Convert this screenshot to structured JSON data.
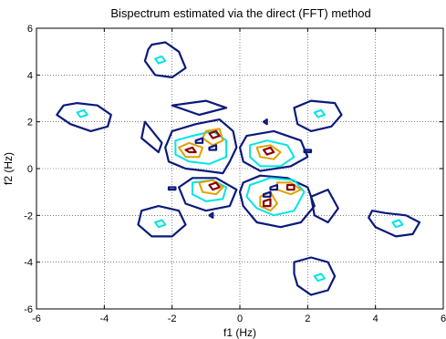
{
  "chart_data": {
    "type": "contour",
    "title": "Bispectrum estimated via the direct (FFT) method",
    "xlabel": "f1 (Hz)",
    "ylabel": "f2 (Hz)",
    "xlim": [
      -6,
      6
    ],
    "ylim": [
      -6,
      6
    ],
    "xticks": [
      -6,
      -4,
      -2,
      0,
      2,
      4,
      6
    ],
    "yticks": [
      -6,
      -4,
      -2,
      0,
      2,
      4,
      6
    ],
    "xtick_labels": [
      "-6",
      "-4",
      "-2",
      "0",
      "2",
      "4",
      "6"
    ],
    "ytick_labels": [
      "-6",
      "-4",
      "-2",
      "0",
      "2",
      "4",
      "6"
    ],
    "grid": true,
    "level_colors": [
      "#0a1a7a",
      "#00e5e5",
      "#e0a000",
      "#8b0000"
    ],
    "contours": [
      {
        "level": 1,
        "color": "#0a1a7a",
        "points": [
          [
            -2.6,
            5.3
          ],
          [
            -2.2,
            5.4
          ],
          [
            -1.8,
            5.0
          ],
          [
            -1.6,
            4.3
          ],
          [
            -2.0,
            3.9
          ],
          [
            -2.5,
            4.0
          ],
          [
            -2.8,
            4.6
          ],
          [
            -2.7,
            5.1
          ]
        ]
      },
      {
        "level": 1,
        "color": "#0a1a7a",
        "points": [
          [
            -5.2,
            2.7
          ],
          [
            -4.8,
            2.8
          ],
          [
            -4.2,
            2.7
          ],
          [
            -3.8,
            2.3
          ],
          [
            -3.9,
            1.8
          ],
          [
            -4.4,
            1.6
          ],
          [
            -5.0,
            1.9
          ],
          [
            -5.4,
            2.3
          ]
        ]
      },
      {
        "level": 1,
        "color": "#0a1a7a",
        "points": [
          [
            1.6,
            2.6
          ],
          [
            2.1,
            2.9
          ],
          [
            2.8,
            2.8
          ],
          [
            3.0,
            2.3
          ],
          [
            2.7,
            1.8
          ],
          [
            2.1,
            1.6
          ],
          [
            1.7,
            1.9
          ]
        ]
      },
      {
        "level": 1,
        "color": "#0a1a7a",
        "points": [
          [
            -2.9,
            -1.8
          ],
          [
            -2.4,
            -1.6
          ],
          [
            -1.8,
            -1.8
          ],
          [
            -1.6,
            -2.4
          ],
          [
            -2.0,
            -2.9
          ],
          [
            -2.6,
            -2.9
          ],
          [
            -3.0,
            -2.4
          ]
        ]
      },
      {
        "level": 1,
        "color": "#0a1a7a",
        "points": [
          [
            3.9,
            -1.8
          ],
          [
            4.3,
            -1.9
          ],
          [
            4.9,
            -2.0
          ],
          [
            5.3,
            -2.3
          ],
          [
            5.1,
            -2.8
          ],
          [
            4.6,
            -2.9
          ],
          [
            4.0,
            -2.5
          ],
          [
            3.8,
            -2.1
          ]
        ]
      },
      {
        "level": 1,
        "color": "#0a1a7a",
        "points": [
          [
            1.6,
            -4.0
          ],
          [
            2.1,
            -3.8
          ],
          [
            2.6,
            -4.0
          ],
          [
            2.8,
            -4.6
          ],
          [
            2.6,
            -5.2
          ],
          [
            2.1,
            -5.4
          ],
          [
            1.7,
            -5.0
          ],
          [
            1.6,
            -4.5
          ]
        ]
      },
      {
        "level": 1,
        "color": "#0a1a7a",
        "points": [
          [
            -2.0,
            1.6
          ],
          [
            -1.3,
            1.9
          ],
          [
            -0.6,
            2.1
          ],
          [
            -0.2,
            1.6
          ],
          [
            -0.1,
            0.9
          ],
          [
            -0.3,
            0.3
          ],
          [
            -0.5,
            -0.2
          ],
          [
            -1.0,
            -0.1
          ],
          [
            -1.6,
            0.0
          ],
          [
            -2.1,
            0.3
          ],
          [
            -2.2,
            0.9
          ]
        ]
      },
      {
        "level": 1,
        "color": "#0a1a7a",
        "points": [
          [
            -2.8,
            2.0
          ],
          [
            -2.3,
            1.1
          ],
          [
            -2.4,
            0.7
          ],
          [
            -2.9,
            1.3
          ],
          [
            -2.8,
            2.0
          ]
        ]
      },
      {
        "level": 1,
        "color": "#0a1a7a",
        "points": [
          [
            -2.0,
            2.7
          ],
          [
            -1.0,
            2.9
          ],
          [
            -0.4,
            2.6
          ],
          [
            -1.2,
            2.3
          ],
          [
            -2.0,
            2.7
          ]
        ]
      },
      {
        "level": 1,
        "color": "#0a1a7a",
        "points": [
          [
            0.2,
            1.4
          ],
          [
            1.0,
            1.6
          ],
          [
            1.8,
            1.2
          ],
          [
            2.0,
            0.5
          ],
          [
            1.5,
            0.1
          ],
          [
            0.6,
            -0.1
          ],
          [
            0.1,
            0.3
          ],
          [
            0.0,
            0.9
          ]
        ]
      },
      {
        "level": 1,
        "color": "#0a1a7a",
        "points": [
          [
            0.1,
            -0.6
          ],
          [
            0.6,
            -0.3
          ],
          [
            1.4,
            -0.4
          ],
          [
            2.0,
            -0.8
          ],
          [
            2.2,
            -1.6
          ],
          [
            1.8,
            -2.3
          ],
          [
            1.2,
            -2.5
          ],
          [
            0.5,
            -2.3
          ],
          [
            0.1,
            -1.6
          ],
          [
            0.0,
            -1.0
          ]
        ]
      },
      {
        "level": 1,
        "color": "#0a1a7a",
        "points": [
          [
            -1.8,
            -0.8
          ],
          [
            -1.4,
            -0.4
          ],
          [
            -0.7,
            -0.4
          ],
          [
            -0.1,
            -0.9
          ],
          [
            -0.3,
            -1.6
          ],
          [
            -1.0,
            -1.8
          ],
          [
            -1.6,
            -1.5
          ]
        ]
      },
      {
        "level": 1,
        "color": "#0a1a7a",
        "points": [
          [
            2.1,
            -1.2
          ],
          [
            2.6,
            -0.9
          ],
          [
            2.9,
            -1.7
          ],
          [
            2.6,
            -2.3
          ],
          [
            2.2,
            -2.0
          ]
        ]
      },
      {
        "level": 2,
        "color": "#00e5e5",
        "points": [
          [
            -1.9,
            1.2
          ],
          [
            -1.4,
            1.4
          ],
          [
            -0.8,
            1.6
          ],
          [
            -0.4,
            1.2
          ],
          [
            -0.4,
            0.5
          ],
          [
            -0.9,
            0.2
          ],
          [
            -1.5,
            0.3
          ],
          [
            -1.9,
            0.6
          ]
        ]
      },
      {
        "level": 2,
        "color": "#00e5e5",
        "points": [
          [
            0.3,
            1.0
          ],
          [
            0.8,
            1.2
          ],
          [
            1.4,
            1.0
          ],
          [
            1.6,
            0.5
          ],
          [
            1.2,
            0.1
          ],
          [
            0.6,
            0.1
          ],
          [
            0.3,
            0.5
          ]
        ]
      },
      {
        "level": 2,
        "color": "#00e5e5",
        "points": [
          [
            0.3,
            -0.7
          ],
          [
            0.9,
            -0.4
          ],
          [
            1.6,
            -0.5
          ],
          [
            1.9,
            -1.0
          ],
          [
            1.6,
            -1.8
          ],
          [
            1.0,
            -2.0
          ],
          [
            0.5,
            -1.7
          ],
          [
            0.2,
            -1.2
          ]
        ]
      },
      {
        "level": 2,
        "color": "#00e5e5",
        "points": [
          [
            -1.4,
            -0.6
          ],
          [
            -0.8,
            -0.5
          ],
          [
            -0.4,
            -0.8
          ],
          [
            -0.5,
            -1.3
          ],
          [
            -1.0,
            -1.4
          ],
          [
            -1.4,
            -1.1
          ]
        ]
      },
      {
        "level": 2,
        "color": "#00e5e5",
        "points": [
          [
            -4.8,
            2.4
          ],
          [
            -4.6,
            2.5
          ],
          [
            -4.5,
            2.3
          ],
          [
            -4.7,
            2.2
          ]
        ]
      },
      {
        "level": 2,
        "color": "#00e5e5",
        "points": [
          [
            -2.5,
            4.7
          ],
          [
            -2.3,
            4.8
          ],
          [
            -2.2,
            4.6
          ],
          [
            -2.4,
            4.5
          ]
        ]
      },
      {
        "level": 2,
        "color": "#00e5e5",
        "points": [
          [
            2.2,
            2.4
          ],
          [
            2.4,
            2.5
          ],
          [
            2.5,
            2.3
          ],
          [
            2.3,
            2.2
          ]
        ]
      },
      {
        "level": 2,
        "color": "#00e5e5",
        "points": [
          [
            -2.5,
            -2.3
          ],
          [
            -2.3,
            -2.2
          ],
          [
            -2.2,
            -2.4
          ],
          [
            -2.4,
            -2.5
          ]
        ]
      },
      {
        "level": 2,
        "color": "#00e5e5",
        "points": [
          [
            4.5,
            -2.3
          ],
          [
            4.7,
            -2.2
          ],
          [
            4.8,
            -2.4
          ],
          [
            4.6,
            -2.5
          ]
        ]
      },
      {
        "level": 2,
        "color": "#00e5e5",
        "points": [
          [
            2.2,
            -4.6
          ],
          [
            2.4,
            -4.5
          ],
          [
            2.5,
            -4.7
          ],
          [
            2.3,
            -4.8
          ]
        ]
      },
      {
        "level": 3,
        "color": "#e0a000",
        "points": [
          [
            -1.8,
            0.9
          ],
          [
            -1.5,
            1.1
          ],
          [
            -1.1,
            0.9
          ],
          [
            -1.2,
            0.5
          ],
          [
            -1.6,
            0.5
          ]
        ]
      },
      {
        "level": 3,
        "color": "#e0a000",
        "points": [
          [
            -1.0,
            1.6
          ],
          [
            -0.6,
            1.7
          ],
          [
            -0.5,
            1.2
          ],
          [
            -0.8,
            1.0
          ],
          [
            -1.1,
            1.3
          ]
        ]
      },
      {
        "level": 3,
        "color": "#e0a000",
        "points": [
          [
            0.5,
            0.9
          ],
          [
            0.9,
            1.0
          ],
          [
            1.2,
            0.7
          ],
          [
            1.0,
            0.4
          ],
          [
            0.6,
            0.5
          ]
        ]
      },
      {
        "level": 3,
        "color": "#e0a000",
        "points": [
          [
            1.1,
            -0.6
          ],
          [
            1.5,
            -0.6
          ],
          [
            1.8,
            -0.9
          ],
          [
            1.5,
            -1.1
          ],
          [
            1.1,
            -0.9
          ]
        ]
      },
      {
        "level": 3,
        "color": "#e0a000",
        "points": [
          [
            0.6,
            -1.2
          ],
          [
            0.9,
            -1.0
          ],
          [
            1.1,
            -1.5
          ],
          [
            0.9,
            -1.8
          ],
          [
            0.6,
            -1.6
          ]
        ]
      },
      {
        "level": 3,
        "color": "#e0a000",
        "points": [
          [
            -1.2,
            -0.6
          ],
          [
            -0.8,
            -0.5
          ],
          [
            -0.5,
            -0.8
          ],
          [
            -0.7,
            -1.1
          ],
          [
            -1.1,
            -1.0
          ]
        ]
      },
      {
        "level": 4,
        "color": "#8b0000",
        "points": [
          [
            -1.6,
            0.8
          ],
          [
            -1.4,
            0.9
          ],
          [
            -1.3,
            0.7
          ],
          [
            -1.5,
            0.7
          ]
        ]
      },
      {
        "level": 4,
        "color": "#8b0000",
        "points": [
          [
            -0.9,
            1.5
          ],
          [
            -0.7,
            1.6
          ],
          [
            -0.6,
            1.4
          ],
          [
            -0.8,
            1.3
          ]
        ]
      },
      {
        "level": 4,
        "color": "#8b0000",
        "points": [
          [
            0.7,
            0.8
          ],
          [
            0.9,
            0.9
          ],
          [
            1.0,
            0.7
          ],
          [
            0.8,
            0.6
          ]
        ]
      },
      {
        "level": 4,
        "color": "#8b0000",
        "points": [
          [
            1.4,
            -0.7
          ],
          [
            1.6,
            -0.7
          ],
          [
            1.6,
            -0.9
          ],
          [
            1.4,
            -0.9
          ]
        ]
      },
      {
        "level": 4,
        "color": "#8b0000",
        "points": [
          [
            0.7,
            -1.4
          ],
          [
            0.9,
            -1.3
          ],
          [
            0.9,
            -1.6
          ],
          [
            0.7,
            -1.6
          ]
        ]
      },
      {
        "level": 4,
        "color": "#8b0000",
        "points": [
          [
            -0.9,
            -0.7
          ],
          [
            -0.7,
            -0.6
          ],
          [
            -0.6,
            -0.8
          ],
          [
            -0.8,
            -0.9
          ]
        ]
      },
      {
        "level": 1,
        "color": "#0a1a7a",
        "points": [
          [
            -1.3,
            1.2
          ],
          [
            -1.1,
            1.3
          ],
          [
            -1.1,
            1.1
          ],
          [
            -1.3,
            1.1
          ]
        ]
      },
      {
        "level": 1,
        "color": "#0a1a7a",
        "points": [
          [
            -0.9,
            0.9
          ],
          [
            -0.7,
            1.0
          ],
          [
            -0.7,
            0.8
          ],
          [
            -0.9,
            0.8
          ]
        ]
      },
      {
        "level": 1,
        "color": "#0a1a7a",
        "points": [
          [
            0.9,
            -0.8
          ],
          [
            1.1,
            -0.7
          ],
          [
            1.1,
            -0.9
          ],
          [
            0.9,
            -0.9
          ]
        ]
      },
      {
        "level": 1,
        "color": "#0a1a7a",
        "points": [
          [
            0.7,
            -1.1
          ],
          [
            0.9,
            -1.0
          ],
          [
            0.9,
            -1.2
          ],
          [
            0.7,
            -1.2
          ]
        ]
      },
      {
        "level": 1,
        "color": "#0a1a7a",
        "points": [
          [
            0.7,
            2.0
          ],
          [
            0.8,
            2.1
          ],
          [
            0.8,
            1.9
          ]
        ]
      },
      {
        "level": 1,
        "color": "#0a1a7a",
        "points": [
          [
            -2.1,
            -0.8
          ],
          [
            -1.9,
            -0.8
          ],
          [
            -1.9,
            -0.9
          ],
          [
            -2.1,
            -0.9
          ]
        ]
      },
      {
        "level": 1,
        "color": "#0a1a7a",
        "points": [
          [
            -0.9,
            -2.0
          ],
          [
            -0.8,
            -1.9
          ],
          [
            -0.8,
            -2.1
          ]
        ]
      },
      {
        "level": 1,
        "color": "#0a1a7a",
        "points": [
          [
            1.9,
            0.8
          ],
          [
            2.1,
            0.8
          ],
          [
            2.1,
            0.7
          ],
          [
            1.9,
            0.7
          ]
        ]
      }
    ]
  }
}
